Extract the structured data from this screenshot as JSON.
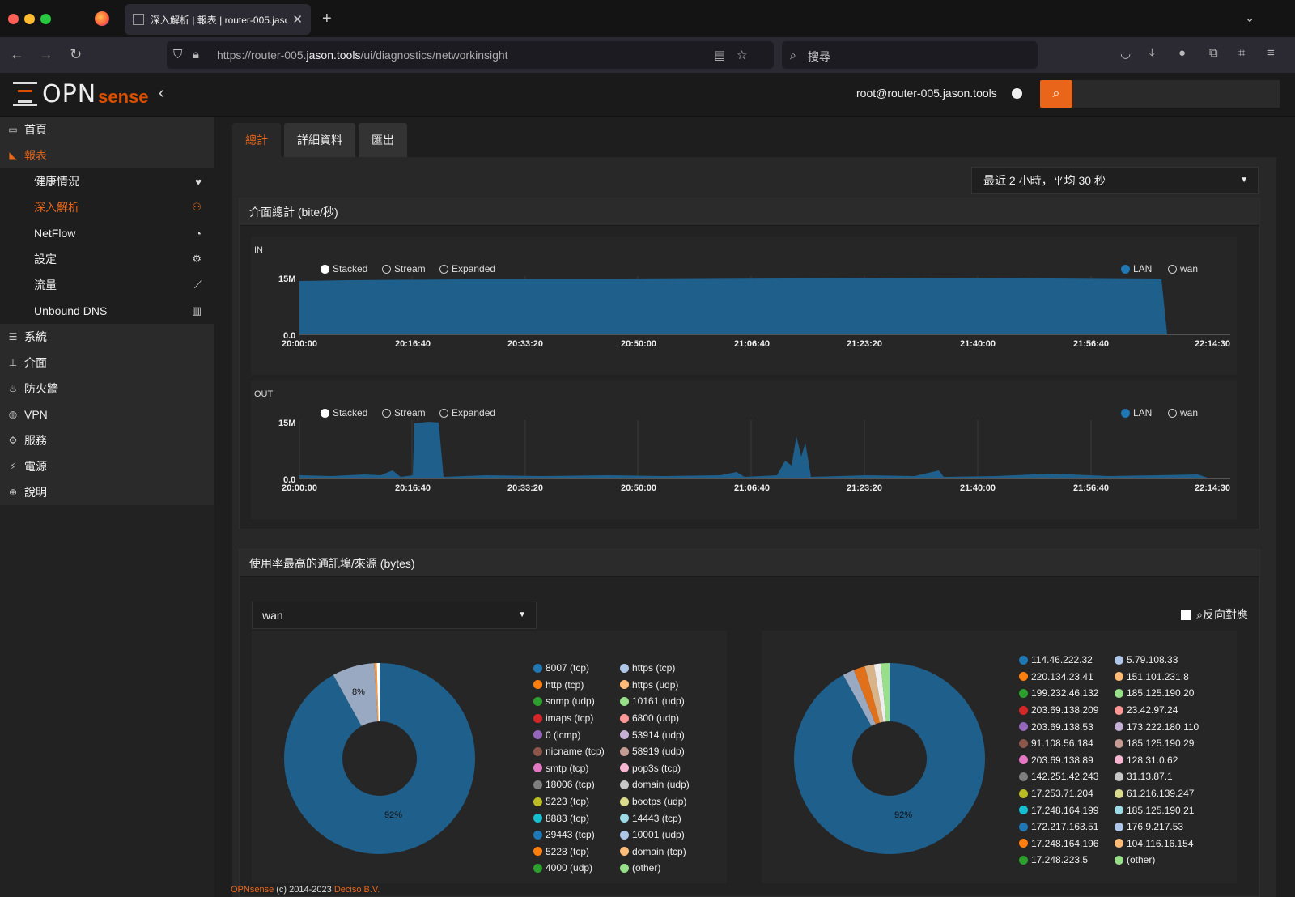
{
  "browser": {
    "tab_title": "深入解析 | 報表 | router-005.jaso",
    "url_prefix": "https://router-005.",
    "url_domain": "jason.tools",
    "url_path": "/ui/diagnostics/networkinsight",
    "search_placeholder": "搜尋"
  },
  "header": {
    "logo_main": "OPN",
    "logo_sub": "sense",
    "user": "root@router-005.jason.tools"
  },
  "sidebar": {
    "top": [
      {
        "label": "首頁",
        "icon": "laptop-icon"
      },
      {
        "label": "報表",
        "icon": "chart-area-icon"
      }
    ],
    "sub": [
      {
        "label": "健康情況",
        "icon": "heartbeat-icon"
      },
      {
        "label": "深入解析",
        "icon": "binoculars-icon"
      },
      {
        "label": "NetFlow",
        "icon": "rss-icon"
      },
      {
        "label": "設定",
        "icon": "cog-icon"
      },
      {
        "label": "流量",
        "icon": "line-chart-icon"
      },
      {
        "label": "Unbound DNS",
        "icon": "bar-chart-icon"
      }
    ],
    "rest": [
      {
        "label": "系統",
        "icon": "server-icon"
      },
      {
        "label": "介面",
        "icon": "sitemap-icon"
      },
      {
        "label": "防火牆",
        "icon": "fire-icon"
      },
      {
        "label": "VPN",
        "icon": "globe-icon"
      },
      {
        "label": "服務",
        "icon": "cog-icon"
      },
      {
        "label": "電源",
        "icon": "plug-icon"
      },
      {
        "label": "說明",
        "icon": "support-icon"
      }
    ]
  },
  "tabs": [
    "總計",
    "詳細資料",
    "匯出"
  ],
  "range_select": "最近 2 小時，平均 30 秒",
  "panel1": {
    "title": "介面總計 (bite/秒)",
    "in_label": "IN",
    "out_label": "OUT",
    "modes": [
      "Stacked",
      "Stream",
      "Expanded"
    ],
    "legend": [
      "LAN",
      "wan"
    ],
    "y_ticks": [
      "15M",
      "0.0"
    ],
    "x_ticks": [
      "20:00:00",
      "20:16:40",
      "20:33:20",
      "20:50:00",
      "21:06:40",
      "21:23:20",
      "21:40:00",
      "21:56:40",
      "22:14:30"
    ]
  },
  "panel2": {
    "title": "使用率最高的通訊埠/來源 (bytes)",
    "interface_select": "wan",
    "reverse_label": "反向對應",
    "ports_left": [
      "8007 (tcp)",
      "http (tcp)",
      "snmp (udp)",
      "imaps (tcp)",
      "0 (icmp)",
      "nicname (tcp)",
      "smtp (tcp)",
      "18006 (tcp)",
      "5223 (tcp)",
      "8883 (tcp)",
      "29443 (tcp)",
      "5228 (tcp)",
      "4000 (udp)"
    ],
    "ports_right": [
      "https (tcp)",
      "https (udp)",
      "10161 (udp)",
      "6800 (udp)",
      "53914 (udp)",
      "58919 (udp)",
      "pop3s (tcp)",
      "domain (udp)",
      "bootps (udp)",
      "14443 (tcp)",
      "10001 (udp)",
      "domain (tcp)",
      "(other)"
    ],
    "src_left": [
      "114.46.222.32",
      "220.134.23.41",
      "199.232.46.132",
      "203.69.138.209",
      "203.69.138.53",
      "91.108.56.184",
      "203.69.138.89",
      "142.251.42.243",
      "17.253.71.204",
      "17.248.164.199",
      "172.217.163.51",
      "17.248.164.196",
      "17.248.223.5"
    ],
    "src_right": [
      "5.79.108.33",
      "151.101.231.8",
      "185.125.190.20",
      "23.42.97.24",
      "173.222.180.110",
      "185.125.190.29",
      "128.31.0.62",
      "31.13.87.1",
      "61.216.139.247",
      "185.125.190.21",
      "176.9.217.53",
      "104.116.16.154",
      "(other)"
    ],
    "pie1_labels": [
      "92%",
      "8%"
    ],
    "pie2_labels": [
      "92%"
    ]
  },
  "colors": {
    "left": [
      "#1f77b4",
      "#ff7f0e",
      "#2ca02c",
      "#d62728",
      "#9467bd",
      "#8c564b",
      "#e377c2",
      "#7f7f7f",
      "#bcbd22",
      "#17becf",
      "#1f77b4",
      "#ff7f0e",
      "#2ca02c"
    ],
    "right": [
      "#aec7e8",
      "#ffbb78",
      "#98df8a",
      "#ff9896",
      "#c5b0d5",
      "#c49c94",
      "#f7b6d2",
      "#c7c7c7",
      "#dbdb8d",
      "#9edae5",
      "#aec7e8",
      "#ffbb78",
      "#98df8a"
    ],
    "accent": "#e8651a",
    "series": "#1f5f8b"
  },
  "footer": {
    "brand": "OPNsense",
    "copy": " (c) 2014-2023 ",
    "company": "Deciso B.V."
  }
}
